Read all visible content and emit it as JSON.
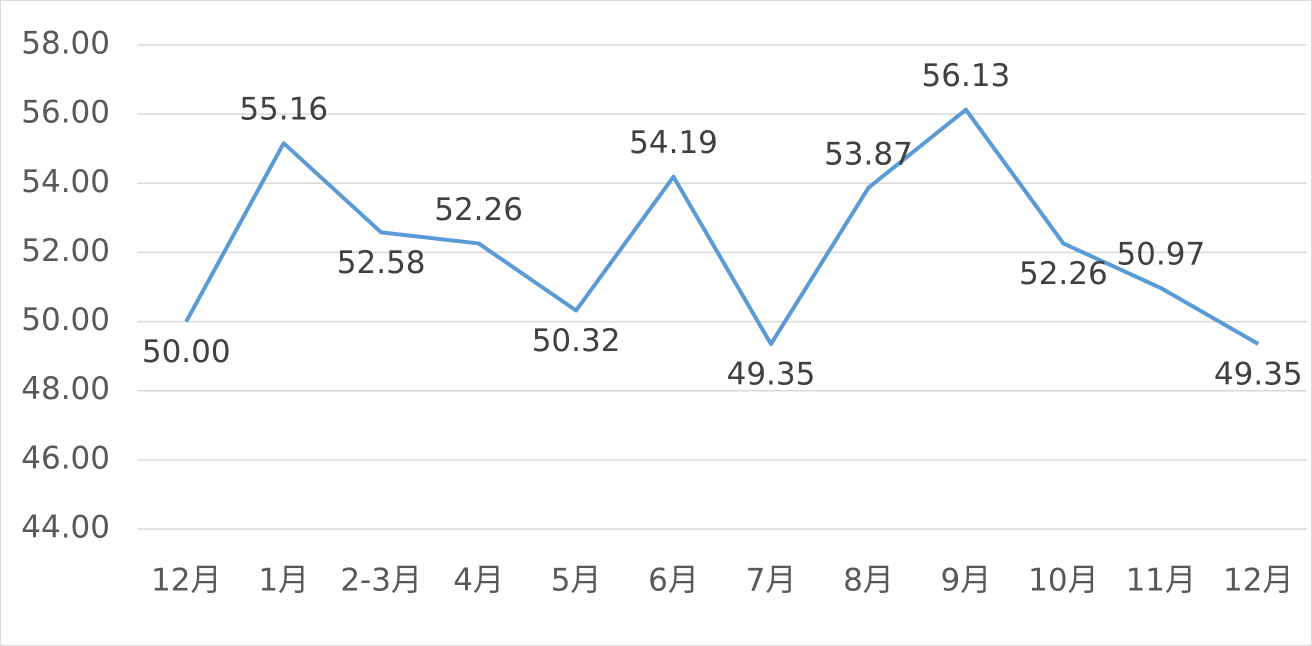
{
  "chart_data": {
    "type": "line",
    "categories": [
      "12月",
      "1月",
      "2-3月",
      "4月",
      "5月",
      "6月",
      "7月",
      "8月",
      "9月",
      "10月",
      "11月",
      "12月"
    ],
    "values": [
      50,
      55.16,
      52.58,
      52.26,
      50.32,
      54.19,
      49.35,
      53.87,
      56.13,
      52.26,
      50.97,
      49.35
    ],
    "value_labels": [
      "50.00",
      "55.16",
      "52.58",
      "52.26",
      "50.32",
      "54.19",
      "49.35",
      "53.87",
      "56.13",
      "52.26",
      "50.97",
      "49.35"
    ],
    "color": "#5b9bd5",
    "ylim": [
      44,
      58
    ],
    "yticks": [
      {
        "value": 44,
        "label": "44.00"
      },
      {
        "value": 46,
        "label": "46.00"
      },
      {
        "value": 48,
        "label": "48.00"
      },
      {
        "value": 50,
        "label": "50.00"
      },
      {
        "value": 52,
        "label": "52.00"
      },
      {
        "value": 54,
        "label": "54.00"
      },
      {
        "value": 56,
        "label": "56.00"
      },
      {
        "value": 58,
        "label": "58.00"
      }
    ],
    "grid": true
  }
}
